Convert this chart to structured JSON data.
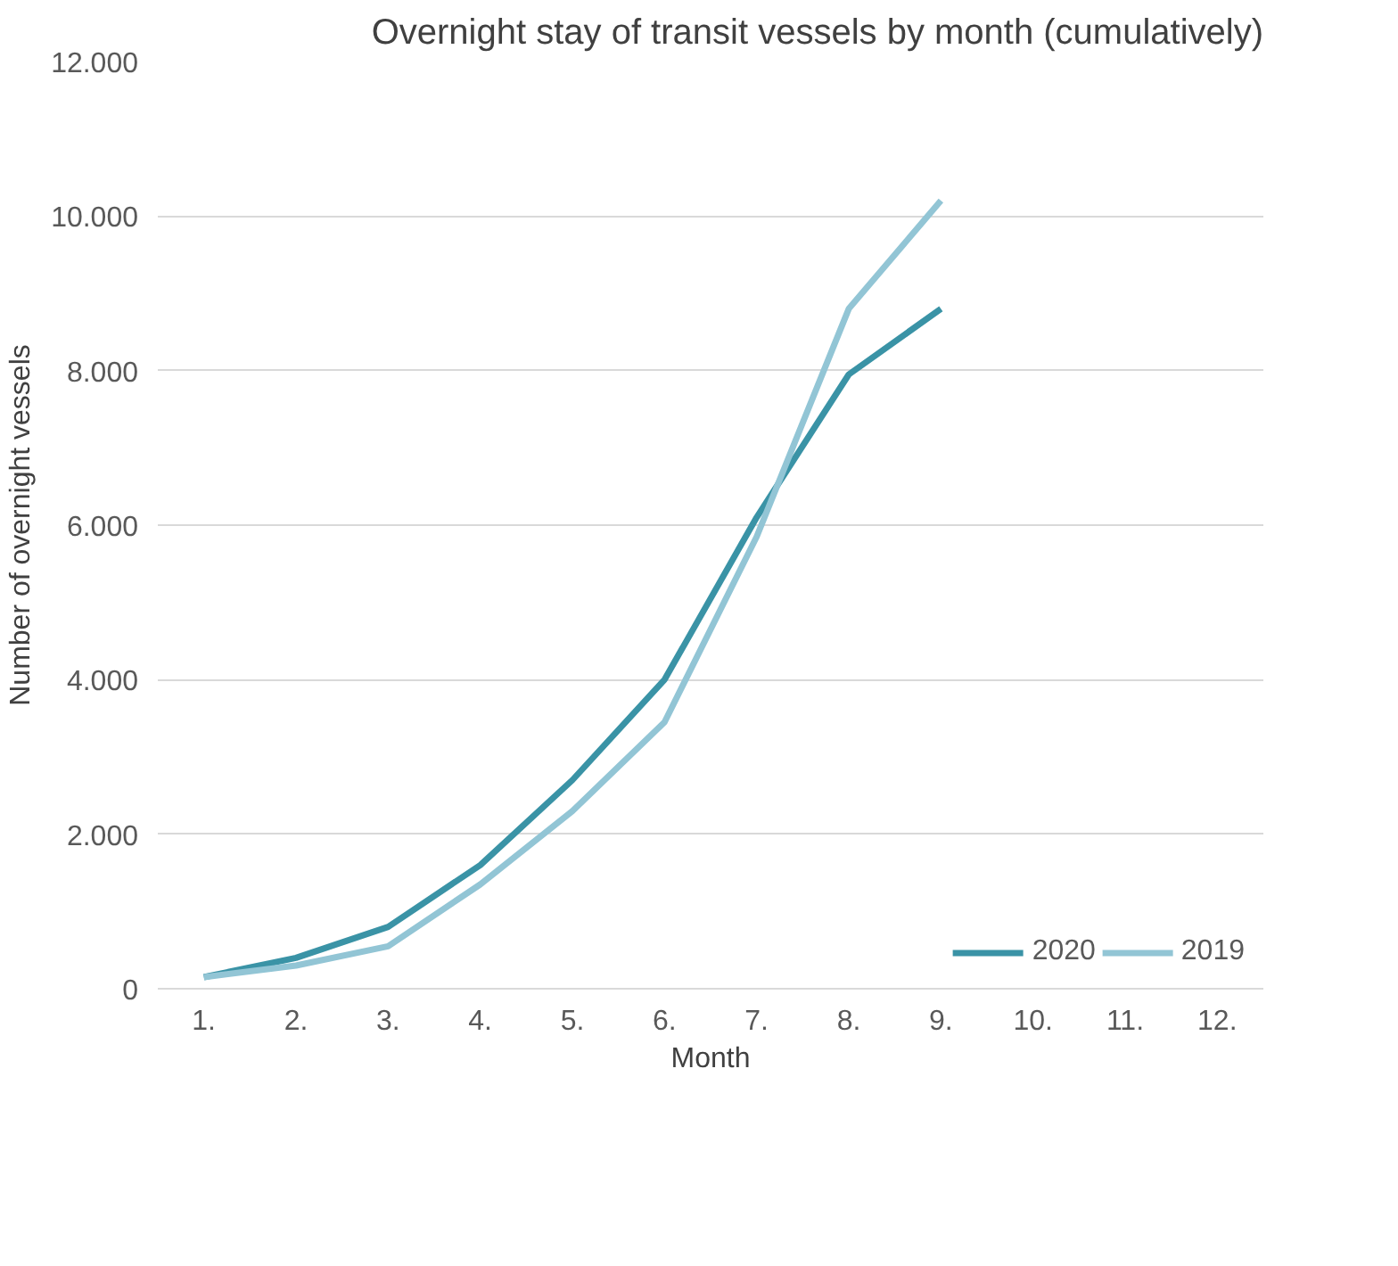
{
  "chart_data": {
    "type": "line",
    "title": "Overnight stay of transit vessels by month (cumulatively)",
    "xlabel": "Month",
    "ylabel": "Number of overnight vessels",
    "categories": [
      "1.",
      "2.",
      "3.",
      "4.",
      "5.",
      "6.",
      "7.",
      "8.",
      "9.",
      "10.",
      "11.",
      "12."
    ],
    "series": [
      {
        "name": "2020",
        "color": "#3a93a6",
        "values": [
          150,
          400,
          800,
          1600,
          2700,
          4000,
          6100,
          7950,
          8800,
          null,
          null,
          null
        ]
      },
      {
        "name": "2019",
        "color": "#92c5d5",
        "values": [
          150,
          300,
          550,
          1350,
          2300,
          3450,
          5850,
          8800,
          10200,
          null,
          null,
          null
        ]
      }
    ],
    "ylim": [
      0,
      12000
    ],
    "yticks": [
      0,
      {
        "value": 2000,
        "label": "2.000"
      },
      {
        "value": 4000,
        "label": "4.000"
      },
      {
        "value": 6000,
        "label": "6.000"
      },
      {
        "value": 8000,
        "label": "8.000"
      },
      {
        "value": 10000,
        "label": "10.000"
      },
      {
        "value": 12000,
        "label": "12.000"
      }
    ],
    "grid": "y",
    "legend": "bottom right",
    "marker": "none",
    "line_style": "solid"
  }
}
